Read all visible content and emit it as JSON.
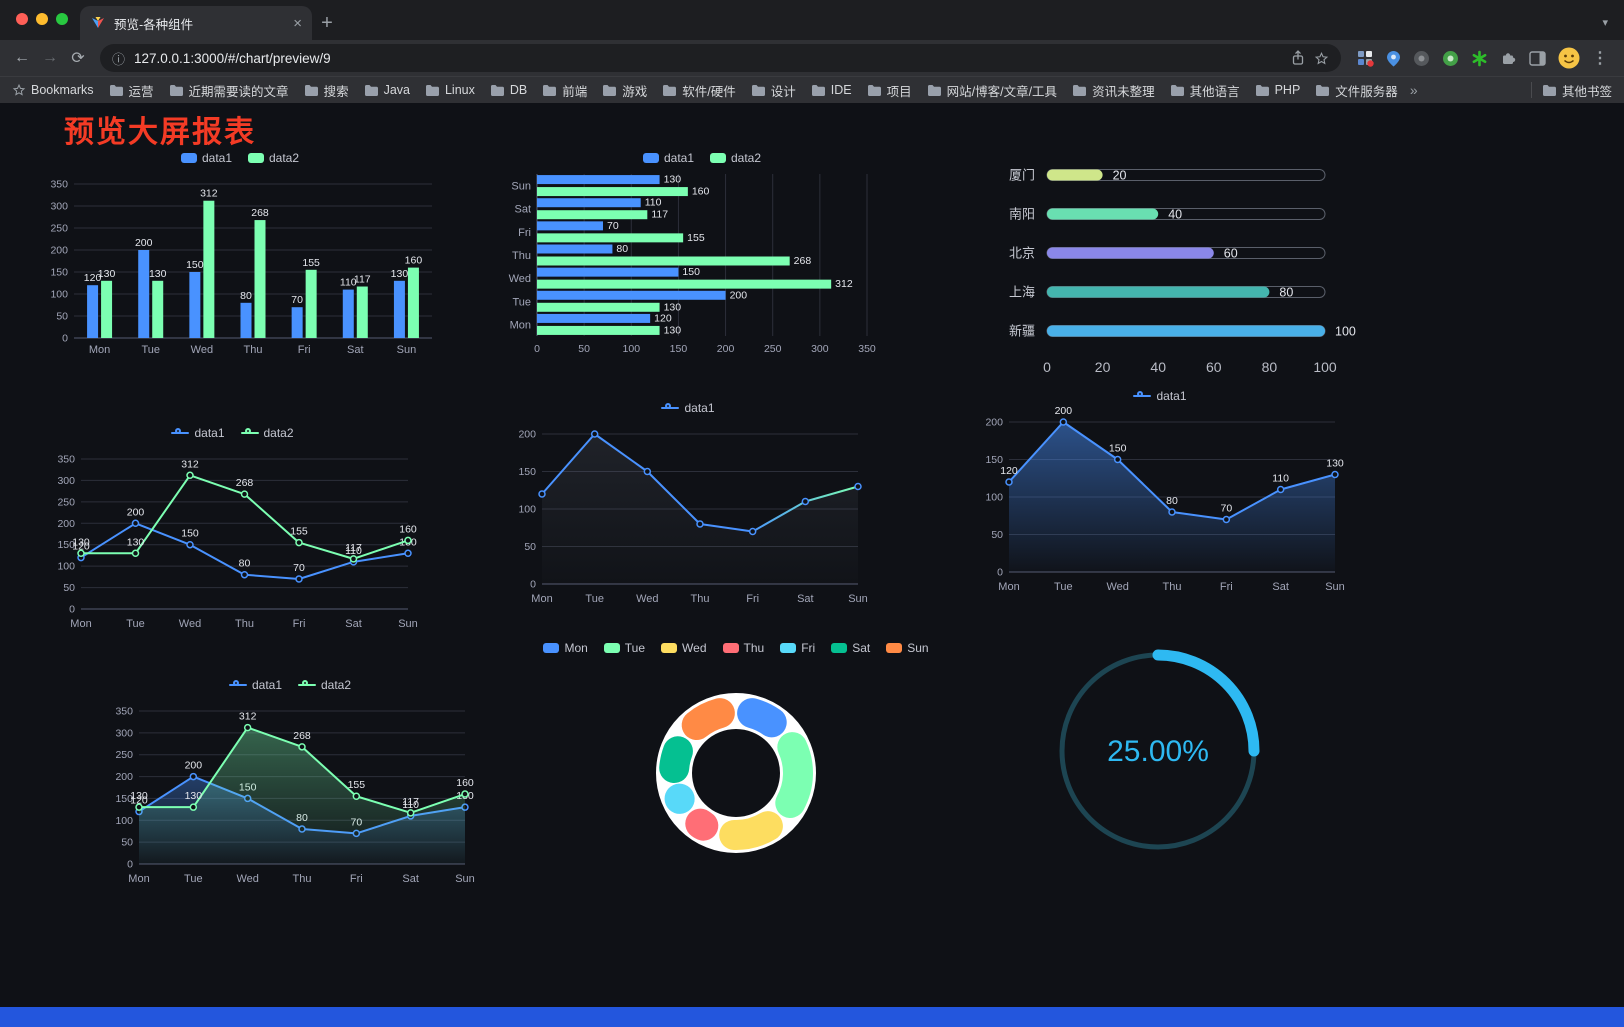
{
  "browser": {
    "tab": {
      "title": "预览-各种组件"
    },
    "address": {
      "url": "127.0.0.1:3000/#/chart/preview/9"
    },
    "bookmarks": [
      "Bookmarks",
      "运营",
      "近期需要读的文章",
      "搜索",
      "Java",
      "Linux",
      "DB",
      "前端",
      "游戏",
      "软件/硬件",
      "设计",
      "IDE",
      "项目",
      "网站/博客/文章/工具",
      "资讯未整理",
      "其他语言",
      "PHP",
      "文件服务器"
    ],
    "bookmarks_overflow": "»",
    "other_bookmarks": "其他书签",
    "window_controls": [
      "#ff5f57",
      "#febc2e",
      "#28c840"
    ]
  },
  "icons": {
    "back": "←",
    "forward": "→",
    "reload": "⟳",
    "close": "×",
    "new_tab": "+",
    "tab_search": "▾",
    "info": "ⓘ",
    "menu_kebab": "⋮"
  },
  "page": {
    "title": "预览大屏报表",
    "title_color": "#f43b25",
    "background": "#0f1116",
    "bottom_bar_color": "#2356dd"
  },
  "chart_data": [
    {
      "id": "bar-grouped",
      "type": "bar",
      "categories": [
        "Mon",
        "Tue",
        "Wed",
        "Thu",
        "Fri",
        "Sat",
        "Sun"
      ],
      "series": [
        {
          "name": "data1",
          "color": "#4992ff",
          "values": [
            120,
            200,
            150,
            80,
            70,
            110,
            130
          ]
        },
        {
          "name": "data2",
          "color": "#7cffb2",
          "values": [
            130,
            130,
            312,
            268,
            155,
            117,
            160
          ]
        }
      ],
      "ylim": [
        0,
        350
      ],
      "ytick": 50,
      "value_labels": true,
      "legend_position": "top",
      "grid": true
    },
    {
      "id": "bar-horizontal",
      "type": "bar-horizontal",
      "categories": [
        "Mon",
        "Tue",
        "Wed",
        "Thu",
        "Fri",
        "Sat",
        "Sun"
      ],
      "series": [
        {
          "name": "data1",
          "color": "#4992ff",
          "values": [
            120,
            200,
            150,
            80,
            70,
            110,
            130
          ]
        },
        {
          "name": "data2",
          "color": "#7cffb2",
          "values": [
            130,
            130,
            312,
            268,
            155,
            117,
            160
          ]
        }
      ],
      "xlim": [
        0,
        350
      ],
      "xtick": 50,
      "value_labels": true,
      "legend_position": "top",
      "grid": true
    },
    {
      "id": "progress-bars",
      "type": "progress",
      "rows": [
        {
          "label": "厦门",
          "value": 20,
          "color": "#cfe68a"
        },
        {
          "label": "南阳",
          "value": 40,
          "color": "#69dfb1"
        },
        {
          "label": "北京",
          "value": 60,
          "color": "#8a87e8"
        },
        {
          "label": "上海",
          "value": 80,
          "color": "#44b5ae"
        },
        {
          "label": "新疆",
          "value": 100,
          "color": "#49b0e8"
        }
      ],
      "max": 100,
      "xticks": [
        0,
        20,
        40,
        60,
        80,
        100
      ]
    },
    {
      "id": "line-basic",
      "type": "line",
      "categories": [
        "Mon",
        "Tue",
        "Wed",
        "Thu",
        "Fri",
        "Sat",
        "Sun"
      ],
      "series": [
        {
          "name": "data1",
          "color": "#4992ff",
          "values": [
            120,
            200,
            150,
            80,
            70,
            110,
            130
          ]
        },
        {
          "name": "data2",
          "color": "#7cffb2",
          "values": [
            130,
            130,
            312,
            268,
            155,
            117,
            160
          ]
        }
      ],
      "ylim": [
        0,
        350
      ],
      "ytick": 50,
      "value_labels": true,
      "legend_position": "top",
      "grid": true
    },
    {
      "id": "line-gradient",
      "type": "line",
      "categories": [
        "Mon",
        "Tue",
        "Wed",
        "Thu",
        "Fri",
        "Sat",
        "Sun"
      ],
      "series": [
        {
          "name": "data1",
          "color": "#4992ff",
          "gradient_stops": [
            [
              0,
              "#4992ff"
            ],
            [
              0.65,
              "#4992ff"
            ],
            [
              1,
              "#7cffb2"
            ]
          ],
          "values": [
            120,
            200,
            150,
            80,
            70,
            110,
            130
          ],
          "area": true,
          "area_color": "#6b7280",
          "area_opacity": 0.18,
          "labels": false
        }
      ],
      "ylim": [
        0,
        200
      ],
      "ytick": 50,
      "value_labels": false,
      "legend_position": "top",
      "grid": true
    },
    {
      "id": "line-area",
      "type": "line",
      "categories": [
        "Mon",
        "Tue",
        "Wed",
        "Thu",
        "Fri",
        "Sat",
        "Sun"
      ],
      "series": [
        {
          "name": "data1",
          "color": "#4992ff",
          "values": [
            120,
            200,
            150,
            80,
            70,
            110,
            130
          ],
          "area": true,
          "area_opacity": 0.5
        }
      ],
      "ylim": [
        0,
        200
      ],
      "ytick": 50,
      "value_labels": true,
      "legend_position": "top",
      "grid": true
    },
    {
      "id": "line-area-double",
      "type": "line",
      "categories": [
        "Mon",
        "Tue",
        "Wed",
        "Thu",
        "Fri",
        "Sat",
        "Sun"
      ],
      "series": [
        {
          "name": "data1",
          "color": "#4992ff",
          "values": [
            120,
            200,
            150,
            80,
            70,
            110,
            130
          ],
          "area": true,
          "area_opacity": 0.35
        },
        {
          "name": "data2",
          "color": "#7cffb2",
          "values": [
            130,
            130,
            312,
            268,
            155,
            117,
            160
          ],
          "area": true,
          "area_opacity": 0.35
        }
      ],
      "ylim": [
        0,
        350
      ],
      "ytick": 50,
      "value_labels": true,
      "legend_position": "top",
      "grid": true
    },
    {
      "id": "donut",
      "type": "pie",
      "labels": [
        "Mon",
        "Tue",
        "Wed",
        "Thu",
        "Fri",
        "Sat",
        "Sun"
      ],
      "values": [
        120,
        200,
        150,
        80,
        70,
        110,
        130
      ],
      "colors": [
        "#4992ff",
        "#7cffb2",
        "#fddd60",
        "#ff6e76",
        "#58d9f9",
        "#05c091",
        "#ff8a45"
      ],
      "legend_position": "top",
      "inner_radius_ratio": 0.6,
      "border_color": "#ffffff"
    },
    {
      "id": "gauge",
      "type": "gauge",
      "value": 25,
      "display": "25.00%",
      "color": "#2eb9f2",
      "track_color": "#1d4552"
    }
  ]
}
